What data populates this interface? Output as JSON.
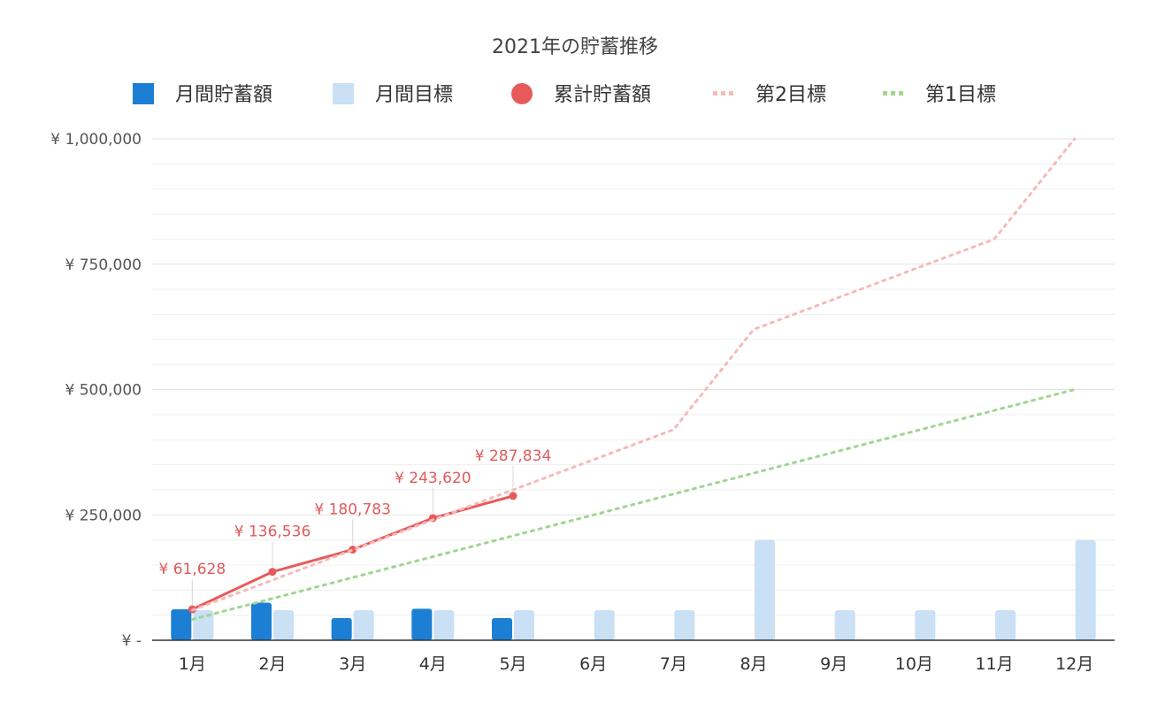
{
  "chart_data": {
    "type": "bar",
    "title": "2021年の貯蓄推移",
    "categories": [
      "1月",
      "2月",
      "3月",
      "4月",
      "5月",
      "6月",
      "7月",
      "8月",
      "9月",
      "10月",
      "11月",
      "12月"
    ],
    "ylim": [
      0,
      1000000
    ],
    "yticks": [
      {
        "value": 0,
        "label": "¥ -"
      },
      {
        "value": 250000,
        "label": "¥ 250,000"
      },
      {
        "value": 500000,
        "label": "¥ 500,000"
      },
      {
        "value": 750000,
        "label": "¥ 750,000"
      },
      {
        "value": 1000000,
        "label": "¥ 1,000,000"
      }
    ],
    "grid": true,
    "legend_position": "top",
    "series": [
      {
        "name": "月間貯蓄額",
        "type": "bar",
        "color": "#1c7fd3",
        "values": [
          61628,
          74908,
          44247,
          62837,
          44214,
          null,
          null,
          null,
          null,
          null,
          null,
          null
        ]
      },
      {
        "name": "月間目標",
        "type": "bar",
        "color": "#c9e0f5",
        "values": [
          60000,
          60000,
          60000,
          60000,
          60000,
          60000,
          60000,
          200000,
          60000,
          60000,
          60000,
          200000
        ]
      },
      {
        "name": "累計貯蓄額",
        "type": "line",
        "color": "#e85a5a",
        "values": [
          61628,
          136536,
          180783,
          243620,
          287834,
          null,
          null,
          null,
          null,
          null,
          null,
          null
        ],
        "labels": [
          "¥ 61,628",
          "¥ 136,536",
          "¥ 180,783",
          "¥ 243,620",
          "¥ 287,834"
        ]
      },
      {
        "name": "第2目標",
        "type": "line",
        "style": "dotted",
        "color": "#f7b9b9",
        "values": [
          60000,
          120000,
          180000,
          240000,
          300000,
          360000,
          420000,
          620000,
          680000,
          740000,
          800000,
          1000000
        ]
      },
      {
        "name": "第1目標",
        "type": "line",
        "style": "dotted",
        "color": "#9fd68f",
        "values": [
          41667,
          83333,
          125000,
          166667,
          208333,
          250000,
          291667,
          333333,
          375000,
          416667,
          458333,
          500000
        ]
      }
    ]
  }
}
